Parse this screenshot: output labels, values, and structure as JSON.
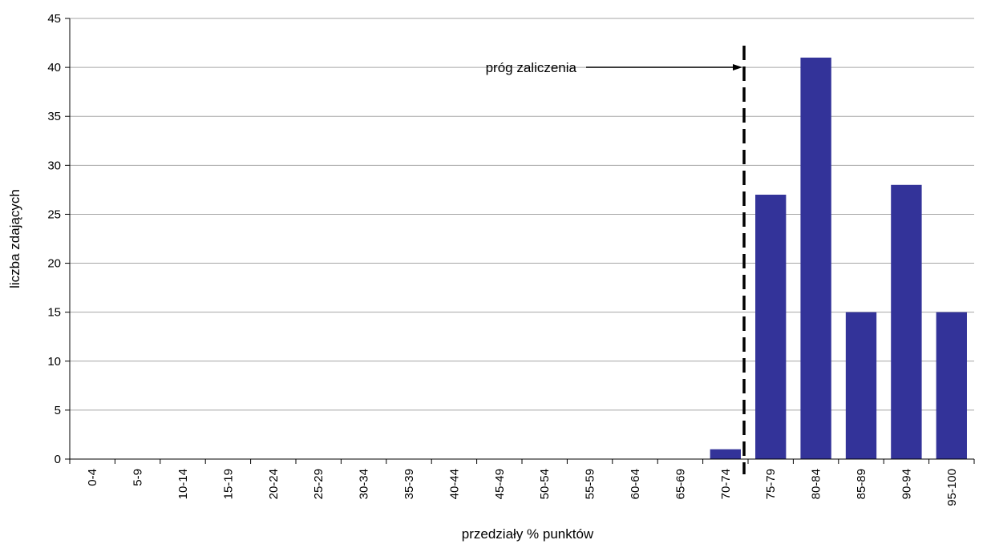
{
  "chart_data": {
    "type": "bar",
    "title": "",
    "xlabel": "przedziały % punktów",
    "ylabel": "liczba zdających",
    "ylim": [
      0,
      45
    ],
    "yticks": [
      0,
      5,
      10,
      15,
      20,
      25,
      30,
      35,
      40,
      45
    ],
    "grid": true,
    "legend": "none",
    "categories": [
      "0-4",
      "5-9",
      "10-14",
      "15-19",
      "20-24",
      "25-29",
      "30-34",
      "35-39",
      "40-44",
      "45-49",
      "50-54",
      "55-59",
      "60-64",
      "65-69",
      "70-74",
      "75-79",
      "80-84",
      "85-89",
      "90-94",
      "95-100"
    ],
    "series": [
      {
        "values": [
          0,
          0,
          0,
          0,
          0,
          0,
          0,
          0,
          0,
          0,
          0,
          0,
          0,
          0,
          1,
          27,
          41,
          15,
          28,
          15
        ]
      }
    ],
    "bar_color": "#333399",
    "annotation": {
      "text": "próg zaliczenia",
      "threshold_between": [
        "70-74",
        "75-79"
      ]
    }
  }
}
